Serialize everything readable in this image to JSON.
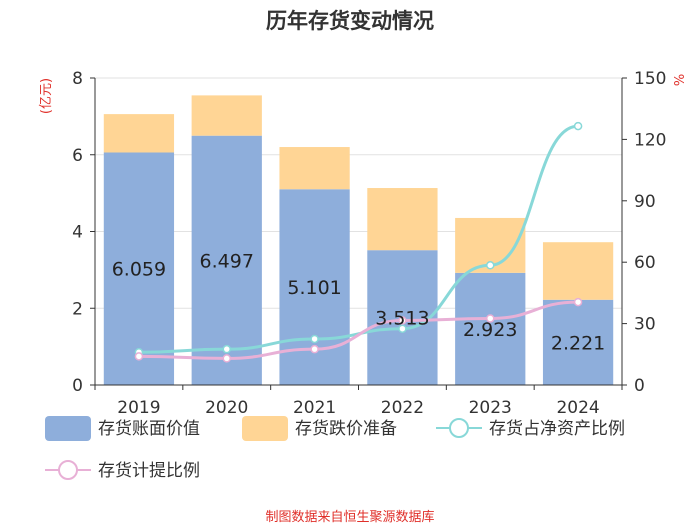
{
  "chart_data": {
    "type": "bar",
    "title": "历年存货变动情况",
    "categories": [
      "2019",
      "2020",
      "2021",
      "2022",
      "2023",
      "2024"
    ],
    "left_axis": {
      "unit": "(亿元)",
      "ylim": [
        0,
        8
      ],
      "ticks": [
        "0",
        "2",
        "4",
        "6",
        "8"
      ]
    },
    "right_axis": {
      "unit": "%",
      "ylim": [
        0,
        150
      ],
      "ticks": [
        "0",
        "30",
        "60",
        "90",
        "120",
        "150"
      ]
    },
    "series": [
      {
        "name": "存货账面价值",
        "kind": "bar",
        "stack": "s",
        "axis": "left",
        "color": "#8eaedb",
        "values": [
          6.059,
          6.497,
          5.101,
          3.513,
          2.923,
          2.221
        ],
        "labels": [
          "6.059",
          "6.497",
          "5.101",
          "3.513",
          "2.923",
          "2.221"
        ]
      },
      {
        "name": "存货跌价准备",
        "kind": "bar",
        "stack": "s",
        "axis": "left",
        "color": "#ffd595",
        "values": [
          1.0,
          1.05,
          1.1,
          1.62,
          1.43,
          1.5
        ]
      },
      {
        "name": "存货占净资产比例",
        "kind": "line",
        "axis": "right",
        "color": "#88d8d8",
        "values": [
          16,
          17.5,
          22.5,
          27.5,
          58.5,
          126.5
        ]
      },
      {
        "name": "存货计提比例",
        "kind": "line",
        "axis": "right",
        "color": "#e8b0d6",
        "values": [
          14,
          13,
          17.5,
          31.5,
          32.5,
          40.5
        ]
      }
    ],
    "legend_position": "bottom"
  },
  "source": "制图数据来自恒生聚源数据库"
}
